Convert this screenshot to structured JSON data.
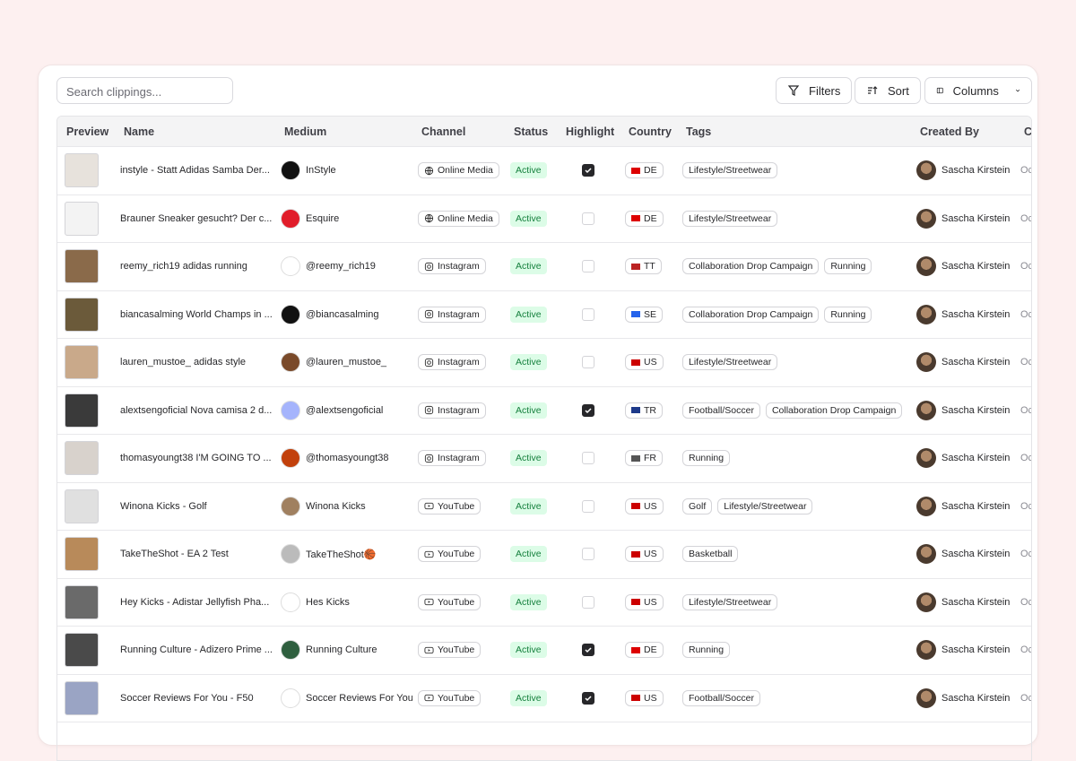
{
  "toolbar": {
    "search_placeholder": "Search clippings...",
    "buttons": [
      "Filters",
      "Sort",
      "Columns"
    ]
  },
  "table": {
    "headers": [
      "Preview",
      "Name",
      "Medium",
      "Channel",
      "Status",
      "Highlight",
      "Country",
      "Tags",
      "Created By",
      "Cr"
    ],
    "rows": [
      {
        "name": "instyle - Statt Adidas Samba Der...",
        "medium": "InStyle",
        "channel": "Online Media",
        "status": "Active",
        "highlight": true,
        "country": "DE",
        "tags": [
          "Lifestyle/Streetwear"
        ],
        "created_by": "Sascha Kirstein",
        "created": "Oct"
      },
      {
        "name": "Brauner Sneaker gesucht? Der c...",
        "medium": "Esquire",
        "channel": "Online Media",
        "status": "Active",
        "highlight": false,
        "country": "DE",
        "tags": [
          "Lifestyle/Streetwear"
        ],
        "created_by": "Sascha Kirstein",
        "created": "Oct"
      },
      {
        "name": "reemy_rich19 adidas running",
        "medium": "@reemy_rich19",
        "channel": "Instagram",
        "status": "Active",
        "highlight": false,
        "country": "TT",
        "tags": [
          "Collaboration Drop Campaign",
          "Running"
        ],
        "created_by": "Sascha Kirstein",
        "created": "Oct"
      },
      {
        "name": "biancasalming World Champs in ...",
        "medium": "@biancasalming",
        "channel": "Instagram",
        "status": "Active",
        "highlight": false,
        "country": "SE",
        "tags": [
          "Collaboration Drop Campaign",
          "Running"
        ],
        "created_by": "Sascha Kirstein",
        "created": "Oct"
      },
      {
        "name": "lauren_mustoe_ adidas style",
        "medium": "@lauren_mustoe_",
        "channel": "Instagram",
        "status": "Active",
        "highlight": false,
        "country": "US",
        "tags": [
          "Lifestyle/Streetwear"
        ],
        "created_by": "Sascha Kirstein",
        "created": "Oct"
      },
      {
        "name": "alextsengoficial Nova camisa 2 d...",
        "medium": "@alextsengoficial",
        "channel": "Instagram",
        "status": "Active",
        "highlight": true,
        "country": "TR",
        "tags": [
          "Football/Soccer",
          "Collaboration Drop Campaign"
        ],
        "created_by": "Sascha Kirstein",
        "created": "Oct"
      },
      {
        "name": "thomasyoungt38 I'M GOING TO ...",
        "medium": "@thomasyoungt38",
        "channel": "Instagram",
        "status": "Active",
        "highlight": false,
        "country": "FR",
        "tags": [
          "Running"
        ],
        "created_by": "Sascha Kirstein",
        "created": "Oct"
      },
      {
        "name": "Winona Kicks - Golf",
        "medium": "Winona Kicks",
        "channel": "YouTube",
        "status": "Active",
        "highlight": false,
        "country": "US",
        "tags": [
          "Golf",
          "Lifestyle/Streetwear"
        ],
        "created_by": "Sascha Kirstein",
        "created": "Oct"
      },
      {
        "name": "TakeTheShot - EA 2 Test",
        "medium": "TakeTheShot🏀",
        "channel": "YouTube",
        "status": "Active",
        "highlight": false,
        "country": "US",
        "tags": [
          "Basketball"
        ],
        "created_by": "Sascha Kirstein",
        "created": "Oct"
      },
      {
        "name": "Hey Kicks - Adistar Jellyfish Pha...",
        "medium": "Hes Kicks",
        "channel": "YouTube",
        "status": "Active",
        "highlight": false,
        "country": "US",
        "tags": [
          "Lifestyle/Streetwear"
        ],
        "created_by": "Sascha Kirstein",
        "created": "Oct"
      },
      {
        "name": "Running Culture - Adizero Prime ...",
        "medium": "Running Culture",
        "channel": "YouTube",
        "status": "Active",
        "highlight": true,
        "country": "DE",
        "tags": [
          "Running"
        ],
        "created_by": "Sascha Kirstein",
        "created": "Oct"
      },
      {
        "name": "Soccer Reviews For You - F50",
        "medium": "Soccer Reviews For You",
        "channel": "YouTube",
        "status": "Active",
        "highlight": true,
        "country": "US",
        "tags": [
          "Football/Soccer"
        ],
        "created_by": "Sascha Kirstein",
        "created": "Oct"
      }
    ]
  }
}
